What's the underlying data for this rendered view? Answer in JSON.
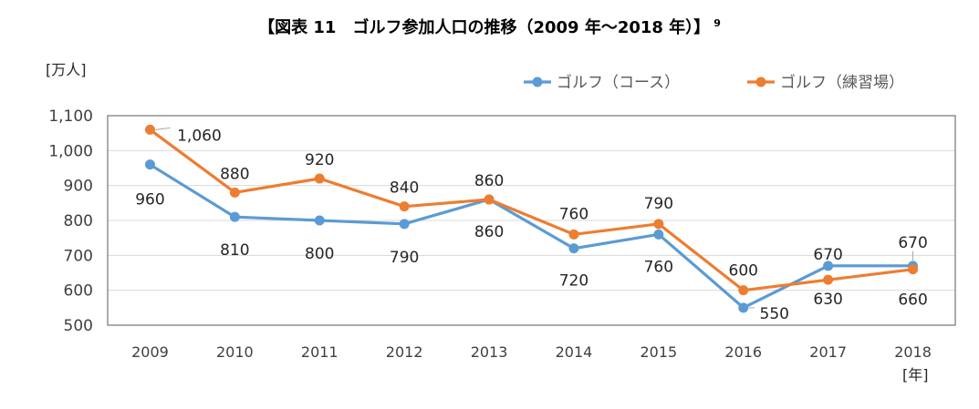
{
  "title": "【図表 11　ゴルフ参加人口の推移（2009 年～2018 年）】",
  "title_footnote": "9",
  "chart_data": {
    "type": "line",
    "title": "【図表 11　ゴルフ参加人口の推移（2009 年～2018 年）】",
    "ylabel": "[万人]",
    "xlabel": "[年]",
    "ylim": [
      500,
      1100
    ],
    "yticks": [
      500,
      600,
      700,
      800,
      900,
      1000,
      1100
    ],
    "ytick_labels": [
      "500",
      "600",
      "700",
      "800",
      "900",
      "1,000",
      "1,100"
    ],
    "categories": [
      "2009",
      "2010",
      "2011",
      "2012",
      "2013",
      "2014",
      "2015",
      "2016",
      "2017",
      "2018"
    ],
    "grid": "horizontal",
    "legend_position": "top-right",
    "series": [
      {
        "name": "ゴルフ（コース）",
        "color": "#5B9BD5",
        "values": [
          960,
          810,
          800,
          790,
          860,
          720,
          760,
          550,
          670,
          670
        ],
        "labels": [
          "960",
          "810",
          "800",
          "790",
          "860",
          "720",
          "760",
          "550",
          "670",
          "670"
        ]
      },
      {
        "name": "ゴルフ（練習場）",
        "color": "#ED7D31",
        "values": [
          1060,
          880,
          920,
          840,
          860,
          760,
          790,
          600,
          630,
          660
        ],
        "labels": [
          "1,060",
          "880",
          "920",
          "840",
          "860",
          "760",
          "790",
          "600",
          "630",
          "660"
        ]
      }
    ]
  }
}
